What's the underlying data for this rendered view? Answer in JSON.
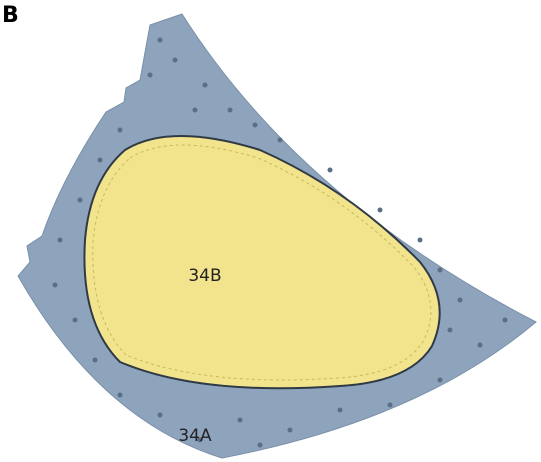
{
  "figure_label": "B",
  "regions": [
    {
      "label": "34B"
    },
    {
      "label": "34A"
    }
  ]
}
